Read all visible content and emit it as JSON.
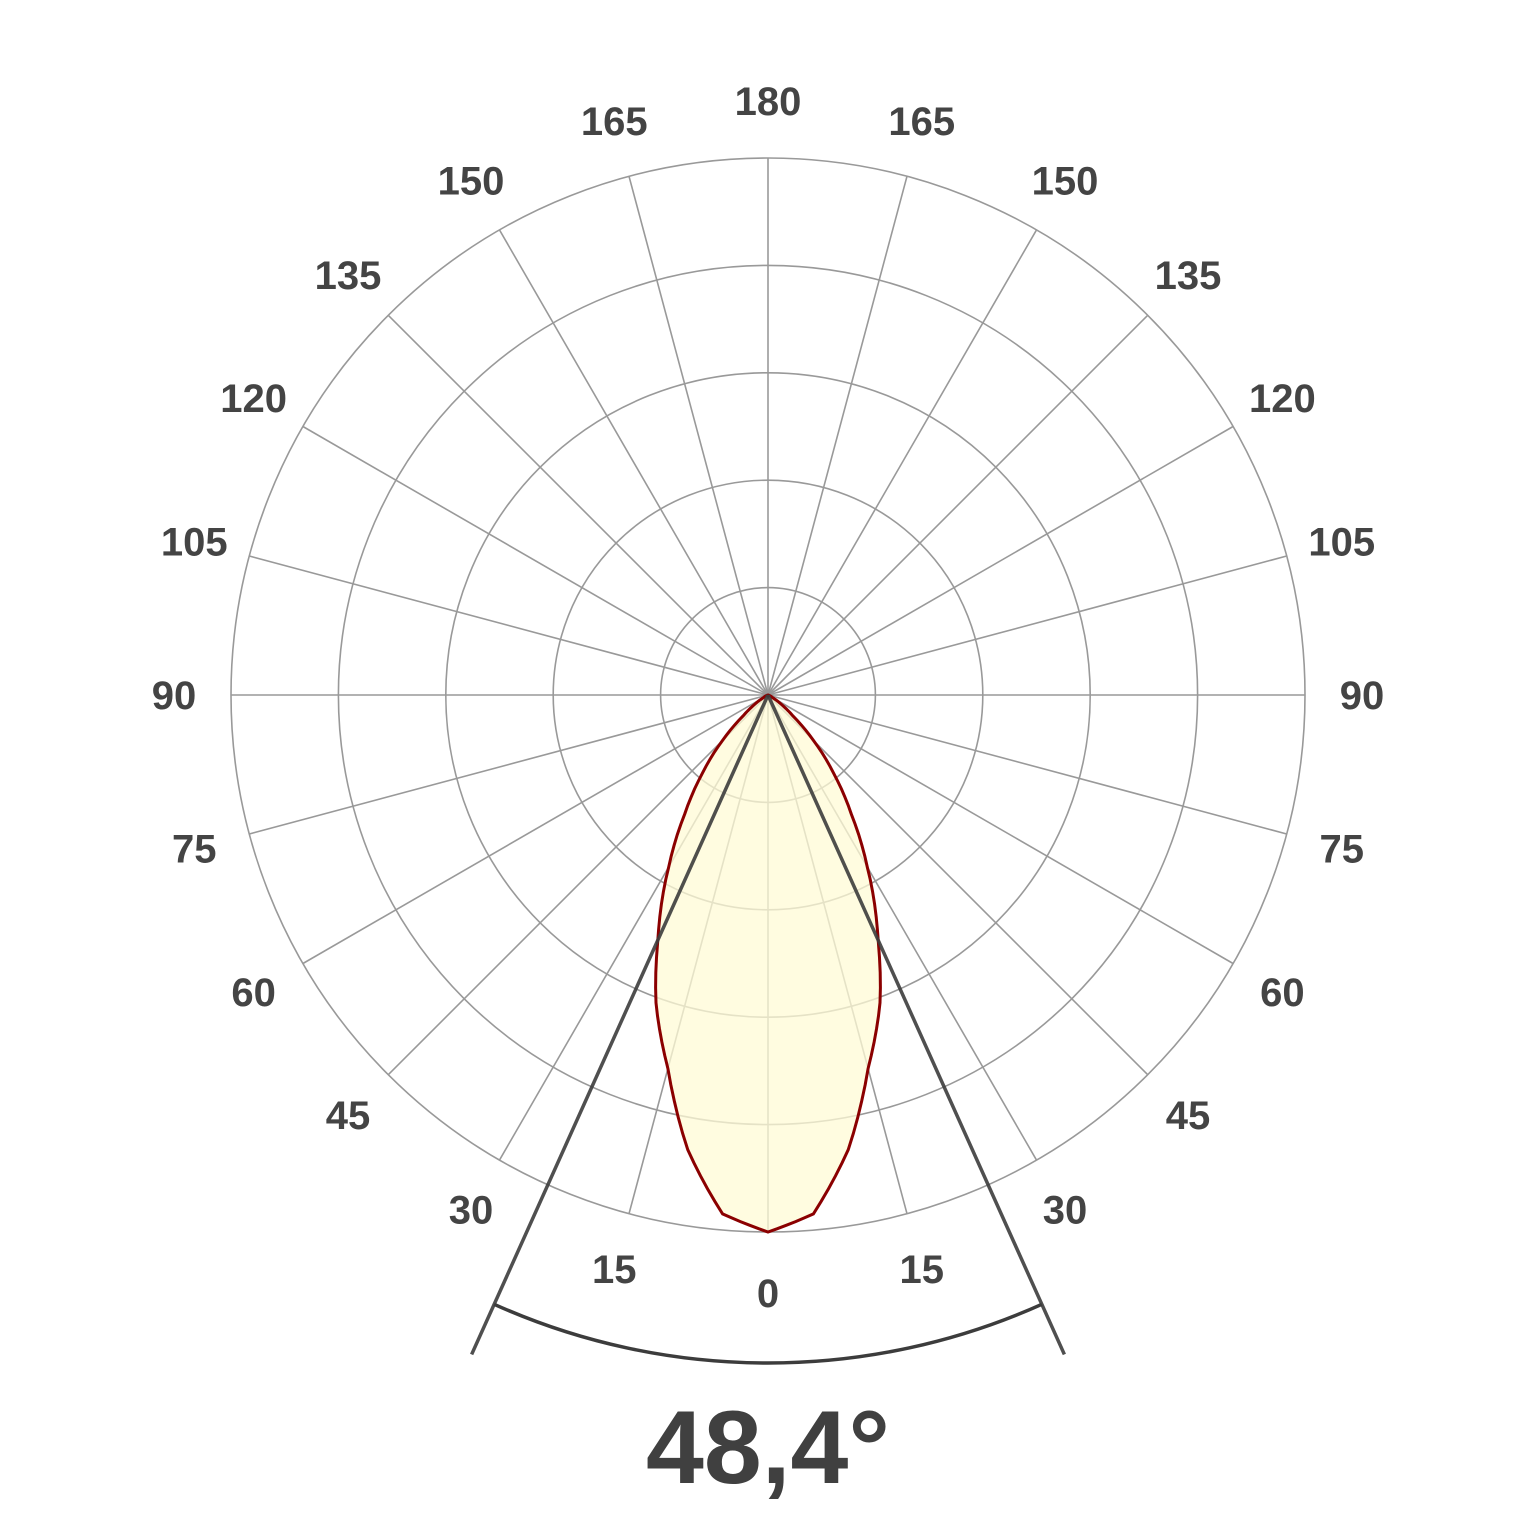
{
  "chart_data": {
    "type": "polar",
    "title": "",
    "angle_tick_labels": [
      "0",
      "15",
      "30",
      "45",
      "60",
      "75",
      "90",
      "105",
      "120",
      "135",
      "150",
      "165",
      "180"
    ],
    "radial_rings": 5,
    "grid": true,
    "series": [
      {
        "angles_deg": [
          0,
          5,
          10,
          15,
          20,
          24.2,
          30,
          35,
          40,
          45,
          50,
          55,
          60,
          75,
          90
        ],
        "relative_intensity": [
          1.0,
          0.97,
          0.86,
          0.72,
          0.61,
          0.5,
          0.37,
          0.27,
          0.19,
          0.12,
          0.06,
          0.03,
          0.01,
          0,
          0
        ],
        "symmetric": true
      }
    ],
    "beam_angle_deg": 48.4,
    "beam_angle_label": "48,4°",
    "colors": {
      "curve": "#8b0000",
      "fill": "#fffbd6",
      "grid": "#999999",
      "beam_lines": "#3c3c3c",
      "text": "#444444"
    }
  }
}
